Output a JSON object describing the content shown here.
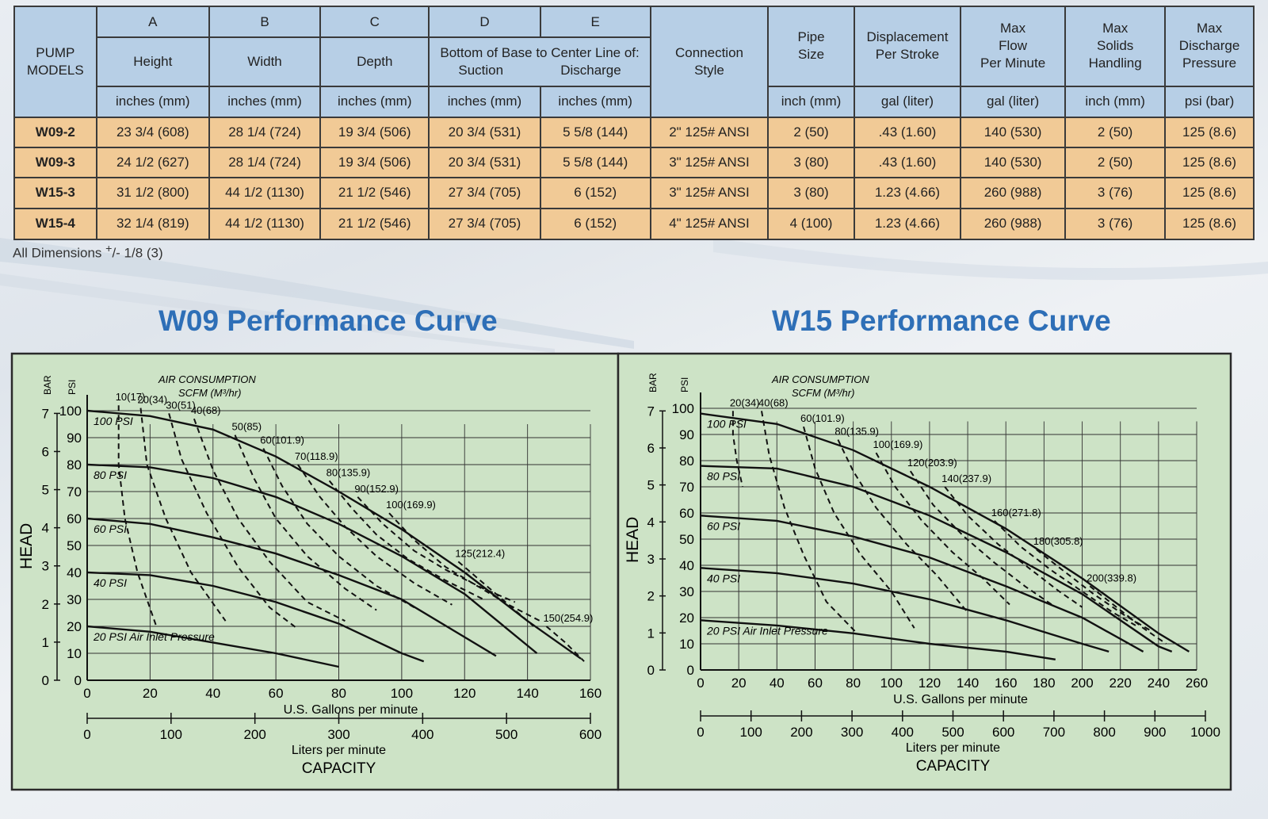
{
  "table": {
    "header": {
      "models": "PUMP\nMODELS",
      "col_letters": [
        "A",
        "B",
        "C",
        "D",
        "E"
      ],
      "col_names": [
        "Height",
        "Width",
        "Depth"
      ],
      "bottom_base": "Bottom of Base to Center Line of:",
      "suction": "Suction",
      "discharge": "Discharge",
      "connection": "Connection\nStyle",
      "pipe_size": "Pipe\nSize",
      "displacement": "Displacement\nPer Stroke",
      "max_flow": "Max\nFlow\nPer Minute",
      "max_solids": "Max\nSolids\nHandling",
      "max_discharge": "Max\nDischarge\nPressure",
      "units": [
        "inches (mm)",
        "inches (mm)",
        "inches (mm)",
        "inches (mm)",
        "inches (mm)",
        "inch (mm)",
        "gal (liter)",
        "gal (liter)",
        "inch (mm)",
        "psi (bar)"
      ]
    },
    "rows": [
      [
        "W09-2",
        "23 3/4 (608)",
        "28 1/4 (724)",
        "19 3/4 (506)",
        "20 3/4 (531)",
        "5 5/8 (144)",
        "2\" 125# ANSI",
        "2 (50)",
        ".43 (1.60)",
        "140 (530)",
        "2 (50)",
        "125 (8.6)"
      ],
      [
        "W09-3",
        "24 1/2 (627)",
        "28 1/4 (724)",
        "19 3/4 (506)",
        "20 3/4 (531)",
        "5 5/8 (144)",
        "3\" 125# ANSI",
        "3 (80)",
        ".43 (1.60)",
        "140 (530)",
        "2 (50)",
        "125 (8.6)"
      ],
      [
        "W15-3",
        "31 1/2 (800)",
        "44 1/2 (1130)",
        "21 1/2 (546)",
        "27 3/4 (705)",
        "6 (152)",
        "3\" 125# ANSI",
        "3 (80)",
        "1.23 (4.66)",
        "260 (988)",
        "3 (76)",
        "125 (8.6)"
      ],
      [
        "W15-4",
        "32 1/4 (819)",
        "44 1/2 (1130)",
        "21 1/2 (546)",
        "27 3/4 (705)",
        "6 (152)",
        "4\" 125# ANSI",
        "4 (100)",
        "1.23 (4.66)",
        "260 (988)",
        "3 (76)",
        "125 (8.6)"
      ]
    ],
    "note_prefix": "All Dimensions ",
    "note_sup": "+",
    "note_suffix": "/- 1/8 (3)"
  },
  "colors": {
    "table_header": "#b7cfe6",
    "table_row": "#f1ca96",
    "chart_bg": "#cde3c6",
    "title": "#2e6fb7"
  },
  "chart_data": [
    {
      "type": "line",
      "title": "W09 Performance Curve",
      "air_title": "AIR CONSUMPTION",
      "air_unit": "SCFM (M³/hr)",
      "bar_label": "BAR",
      "psi_label": "PSI",
      "ylabel": "HEAD",
      "xlabel": "U.S. Gallons per minute",
      "x2label": "Liters per minute",
      "capacity_label": "CAPACITY",
      "x_ticks": [
        0,
        20,
        40,
        60,
        80,
        100,
        120,
        140,
        160
      ],
      "x2_ticks": [
        0,
        100,
        200,
        300,
        400,
        500,
        600
      ],
      "psi_ticks": [
        0,
        10,
        20,
        30,
        40,
        50,
        60,
        70,
        80,
        90,
        100
      ],
      "bar_ticks": [
        0,
        1,
        2,
        3,
        4,
        5,
        6,
        7
      ],
      "xlim": [
        0,
        160
      ],
      "ylim": [
        0,
        100
      ],
      "x2lim": [
        0,
        600
      ],
      "bar_lim": [
        0,
        7
      ],
      "series": [
        {
          "name": "100 PSI",
          "x": [
            0,
            20,
            40,
            60,
            80,
            100,
            120,
            140,
            157
          ],
          "y": [
            100,
            98,
            93,
            83,
            70,
            56,
            40,
            22,
            8
          ]
        },
        {
          "name": "80 PSI",
          "x": [
            0,
            20,
            40,
            60,
            80,
            100,
            120,
            143
          ],
          "y": [
            80,
            79,
            75,
            68,
            58,
            46,
            32,
            10
          ]
        },
        {
          "name": "60 PSI",
          "x": [
            0,
            20,
            40,
            60,
            80,
            100,
            130
          ],
          "y": [
            60,
            58,
            53,
            47,
            39,
            30,
            9
          ]
        },
        {
          "name": "40 PSI",
          "x": [
            0,
            20,
            40,
            60,
            80,
            100,
            107
          ],
          "y": [
            40,
            39,
            35,
            29,
            21,
            10,
            7
          ]
        },
        {
          "name": "20 PSI Air Inlet Pressure",
          "x": [
            0,
            20,
            40,
            60,
            80
          ],
          "y": [
            20,
            18,
            14,
            10,
            5
          ]
        }
      ],
      "air_curves": [
        {
          "name": "10(17)",
          "x": [
            10,
            10,
            12,
            16,
            22
          ],
          "y": [
            102,
            80,
            60,
            40,
            20
          ]
        },
        {
          "name": "20(34)",
          "x": [
            17,
            19,
            25,
            33,
            44
          ],
          "y": [
            101,
            80,
            60,
            40,
            22
          ]
        },
        {
          "name": "30(51)",
          "x": [
            26,
            30,
            38,
            48,
            58,
            67
          ],
          "y": [
            99,
            82,
            62,
            42,
            27,
            19
          ]
        },
        {
          "name": "40(68)",
          "x": [
            34,
            40,
            48,
            58,
            70,
            82
          ],
          "y": [
            97,
            78,
            60,
            44,
            29,
            22
          ]
        },
        {
          "name": "50(85)",
          "x": [
            47,
            53,
            60,
            70,
            82,
            92
          ],
          "y": [
            91,
            75,
            60,
            46,
            34,
            26
          ]
        },
        {
          "name": "60(101.9)",
          "x": [
            56,
            62,
            70,
            80,
            92,
            104
          ],
          "y": [
            86,
            72,
            58,
            46,
            35,
            27
          ]
        },
        {
          "name": "70(118.9)",
          "x": [
            67,
            74,
            82,
            92,
            104,
            116
          ],
          "y": [
            80,
            68,
            57,
            46,
            36,
            28
          ]
        },
        {
          "name": "80(135.9)",
          "x": [
            77,
            84,
            92,
            102,
            114,
            126
          ],
          "y": [
            74,
            64,
            54,
            45,
            37,
            30
          ]
        },
        {
          "name": "90(152.9)",
          "x": [
            86,
            94,
            104,
            114,
            126,
            136
          ],
          "y": [
            68,
            58,
            48,
            41,
            34,
            29
          ]
        },
        {
          "name": "100(169.9)",
          "x": [
            96,
            104,
            114,
            124,
            134,
            144
          ],
          "y": [
            62,
            52,
            42,
            35,
            28,
            22
          ]
        },
        {
          "name": "125(212.4)",
          "x": [
            118,
            124,
            132,
            142
          ],
          "y": [
            44,
            38,
            30,
            20
          ]
        },
        {
          "name": "150(254.9)",
          "x": [
            146,
            152,
            158
          ],
          "y": [
            20,
            14,
            7
          ]
        }
      ]
    },
    {
      "type": "line",
      "title": "W15 Performance Curve",
      "air_title": "AIR CONSUMPTION",
      "air_unit": "SCFM (M³/hr)",
      "bar_label": "BAR",
      "psi_label": "PSI",
      "ylabel": "HEAD",
      "xlabel": "U.S. Gallons per minute",
      "x2label": "Liters per minute",
      "capacity_label": "CAPACITY",
      "x_ticks": [
        0,
        20,
        40,
        60,
        80,
        100,
        120,
        140,
        160,
        180,
        200,
        220,
        240,
        260
      ],
      "x2_ticks": [
        0,
        100,
        200,
        300,
        400,
        500,
        600,
        700,
        800,
        900,
        1000
      ],
      "psi_ticks": [
        0,
        10,
        20,
        30,
        40,
        50,
        60,
        70,
        80,
        90,
        100
      ],
      "bar_ticks": [
        0,
        1,
        2,
        3,
        4,
        5,
        6,
        7
      ],
      "xlim": [
        0,
        260
      ],
      "ylim": [
        0,
        100
      ],
      "x2lim": [
        0,
        1000
      ],
      "bar_lim": [
        0,
        7
      ],
      "series": [
        {
          "name": "100 PSI",
          "x": [
            0,
            40,
            80,
            120,
            160,
            200,
            240,
            256
          ],
          "y": [
            98,
            94,
            84,
            70,
            54,
            35,
            14,
            7
          ]
        },
        {
          "name": "80 PSI",
          "x": [
            0,
            40,
            80,
            120,
            160,
            200,
            240,
            247
          ],
          "y": [
            78,
            77,
            70,
            59,
            45,
            29,
            9,
            7
          ]
        },
        {
          "name": "60 PSI",
          "x": [
            0,
            40,
            80,
            120,
            160,
            200,
            232
          ],
          "y": [
            59,
            57,
            51,
            43,
            32,
            20,
            7
          ]
        },
        {
          "name": "40 PSI",
          "x": [
            0,
            40,
            80,
            120,
            160,
            200,
            214
          ],
          "y": [
            39,
            37,
            33,
            27,
            19,
            10,
            7
          ]
        },
        {
          "name": "20 PSI Air Inlet Pressure",
          "x": [
            0,
            40,
            80,
            120,
            160,
            186
          ],
          "y": [
            19,
            17,
            14,
            10,
            7,
            4
          ]
        }
      ],
      "air_curves": [
        {
          "name": "20(34)",
          "x": [
            17,
            17,
            19,
            22
          ],
          "y": [
            99,
            90,
            80,
            70
          ]
        },
        {
          "name": "40(68)",
          "x": [
            32,
            36,
            44,
            54,
            66,
            82
          ],
          "y": [
            99,
            82,
            62,
            44,
            26,
            14
          ]
        },
        {
          "name": "60(101.9)",
          "x": [
            54,
            60,
            70,
            84,
            100,
            112
          ],
          "y": [
            93,
            77,
            60,
            44,
            30,
            16
          ]
        },
        {
          "name": "80(135.9)",
          "x": [
            72,
            80,
            92,
            108,
            124,
            140
          ],
          "y": [
            88,
            76,
            62,
            48,
            36,
            22
          ]
        },
        {
          "name": "100(169.9)",
          "x": [
            92,
            102,
            116,
            132,
            148,
            162
          ],
          "y": [
            83,
            70,
            57,
            45,
            35,
            25
          ]
        },
        {
          "name": "120(203.9)",
          "x": [
            110,
            122,
            138,
            154,
            170,
            184
          ],
          "y": [
            76,
            63,
            51,
            41,
            32,
            25
          ]
        },
        {
          "name": "140(237.9)",
          "x": [
            128,
            140,
            156,
            172,
            188,
            200
          ],
          "y": [
            70,
            59,
            48,
            39,
            30,
            24
          ]
        },
        {
          "name": "160(271.8)",
          "x": [
            154,
            168,
            184,
            200,
            216,
            228
          ],
          "y": [
            57,
            47,
            38,
            30,
            22,
            17
          ]
        },
        {
          "name": "180(305.8)",
          "x": [
            176,
            190,
            206,
            222,
            236
          ],
          "y": [
            46,
            38,
            29,
            21,
            15
          ]
        },
        {
          "name": "200(339.8)",
          "x": [
            204,
            218,
            232,
            244
          ],
          "y": [
            32,
            24,
            16,
            10
          ]
        }
      ]
    }
  ]
}
